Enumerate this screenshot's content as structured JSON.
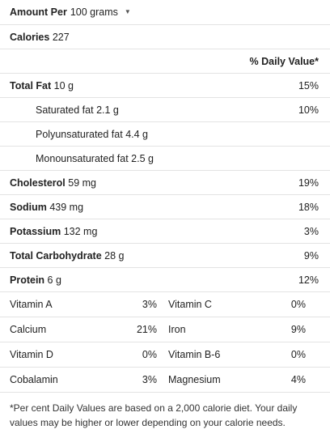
{
  "header": {
    "bold": "Amount Per",
    "unit": "100 grams"
  },
  "calories": {
    "label": "Calories",
    "value": "227"
  },
  "dv_heading": "% Daily Value*",
  "nutrients": [
    {
      "label": "Total Fat",
      "value": "10 g",
      "pct": "15%"
    },
    {
      "label": "Saturated fat",
      "value": "2.1 g",
      "pct": "10%"
    },
    {
      "label": "Polyunsaturated fat",
      "value": "4.4 g",
      "pct": ""
    },
    {
      "label": "Monounsaturated fat",
      "value": "2.5 g",
      "pct": ""
    },
    {
      "label": "Cholesterol",
      "value": "59 mg",
      "pct": "19%"
    },
    {
      "label": "Sodium",
      "value": "439 mg",
      "pct": "18%"
    },
    {
      "label": "Potassium",
      "value": "132 mg",
      "pct": "3%"
    },
    {
      "label": "Total Carbohydrate",
      "value": "28 g",
      "pct": "9%"
    },
    {
      "label": "Protein",
      "value": "6 g",
      "pct": "12%"
    }
  ],
  "vitamins": [
    {
      "left_name": "Vitamin A",
      "left_val": "3%",
      "right_name": "Vitamin C",
      "right_val": "0%"
    },
    {
      "left_name": "Calcium",
      "left_val": "21%",
      "right_name": "Iron",
      "right_val": "9%"
    },
    {
      "left_name": "Vitamin D",
      "left_val": "0%",
      "right_name": "Vitamin B-6",
      "right_val": "0%"
    },
    {
      "left_name": "Cobalamin",
      "left_val": "3%",
      "right_name": "Magnesium",
      "right_val": "4%"
    }
  ],
  "footnote": "*Per cent Daily Values are based on a 2,000 calorie diet. Your daily values may be higher or lower depending on your calorie needs."
}
